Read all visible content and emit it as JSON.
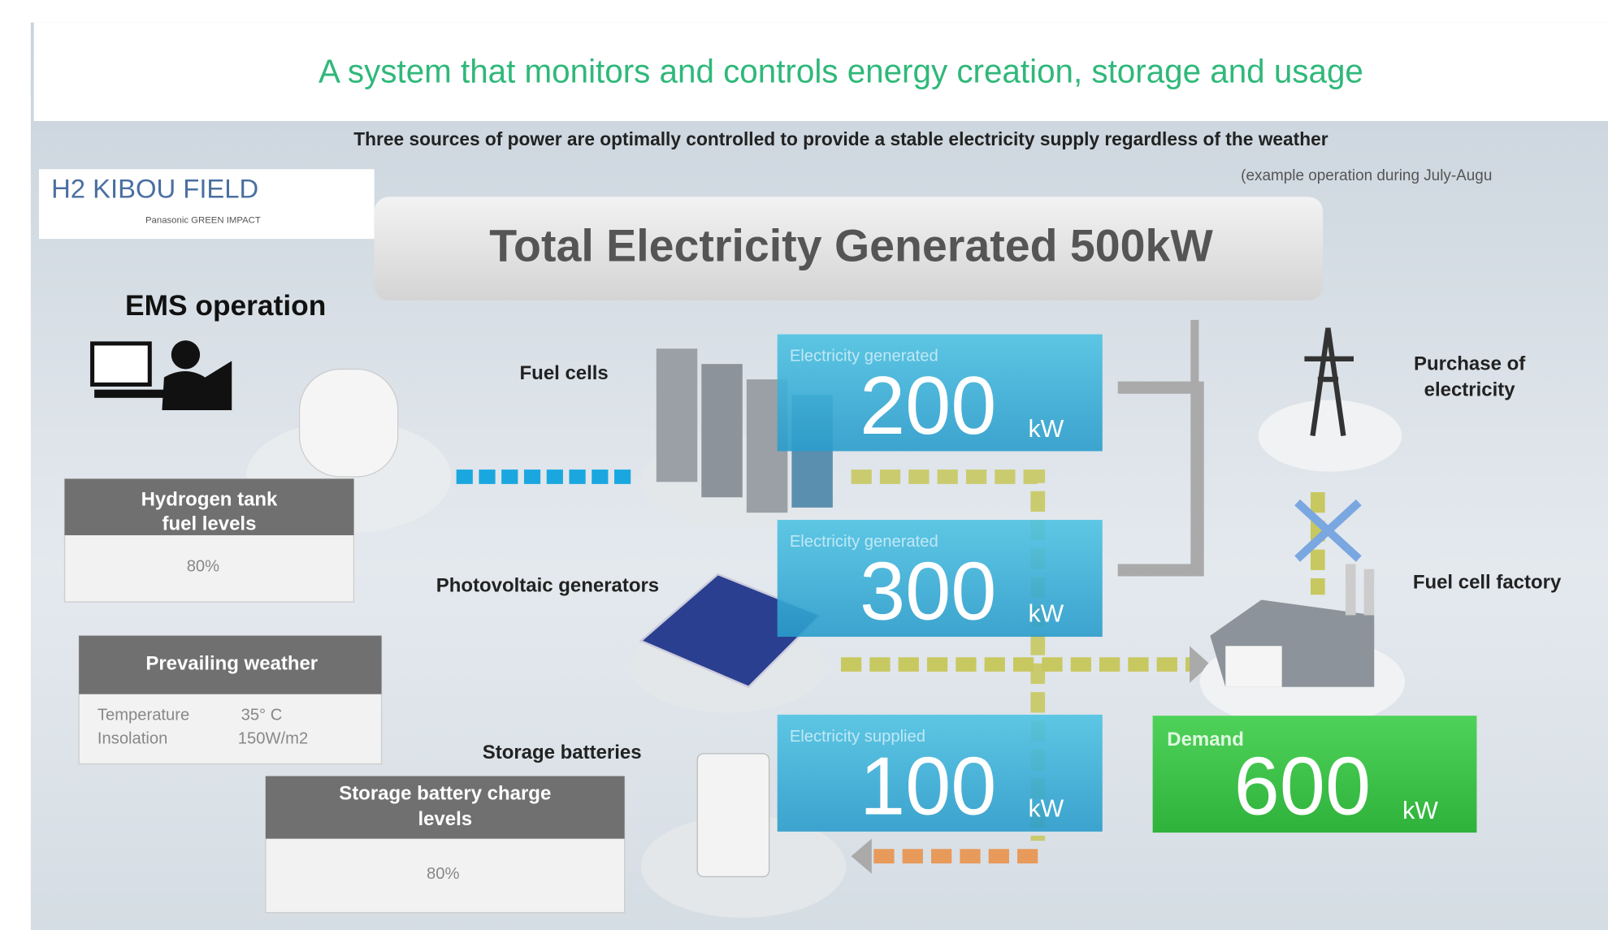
{
  "header": {
    "title": "A system that monitors and controls energy creation, storage and usage",
    "subtitle": "Three sources of power are optimally controlled to provide a stable electricity supply regardless of the weather",
    "note": "(example operation during July-Augu"
  },
  "logo": {
    "name": "H2 KIBOU FIELD",
    "tagline": "Panasonic GREEN IMPACT"
  },
  "banner": "Total Electricity Generated 500kW",
  "ems": "EMS operation",
  "panels": {
    "hydrogen": {
      "lines": [
        "Hydrogen tank",
        "fuel levels"
      ],
      "value": "80%"
    },
    "weather": {
      "title": "Prevailing weather",
      "temperature_label": "Temperature",
      "temperature": "35° C",
      "insolation_label": "Insolation",
      "insolation": "150W/m2"
    },
    "battery": {
      "lines": [
        "Storage battery charge",
        "levels"
      ],
      "value": "80%"
    }
  },
  "labels": {
    "fuel_cells": "Fuel cells",
    "pv": "Photovoltaic generators",
    "storage": "Storage batteries",
    "purchase": [
      "Purchase of",
      "electricity"
    ],
    "factory": "Fuel cell factory"
  },
  "boxes": [
    {
      "label": "Electricity generated",
      "value": "200",
      "unit": "kW"
    },
    {
      "label": "Electricity generated",
      "value": "300",
      "unit": "kW"
    },
    {
      "label": "Electricity supplied",
      "value": "100",
      "unit": "kW"
    },
    {
      "label": "Demand",
      "value": "600",
      "unit": "kW"
    }
  ]
}
